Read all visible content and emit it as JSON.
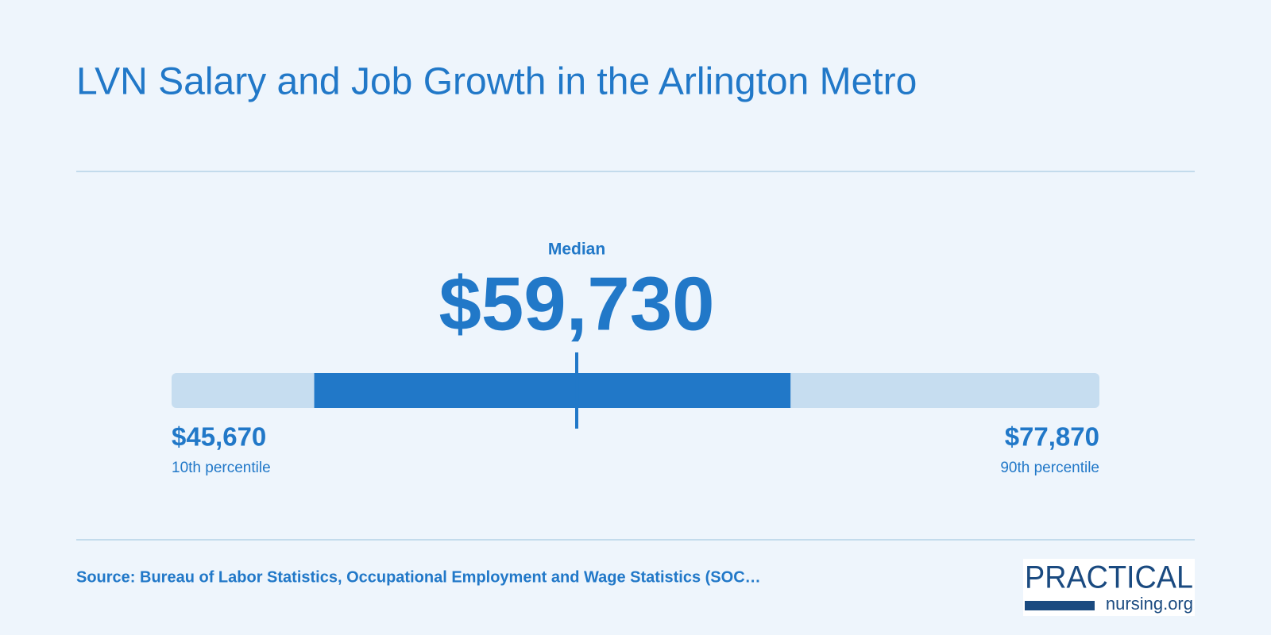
{
  "header": {
    "title": "LVN Salary and Job Growth in the Arlington Metro"
  },
  "range": {
    "median": {
      "label": "Median",
      "value": 59730,
      "value_label": "$59,730"
    },
    "low": {
      "value": 45670,
      "value_label": "$45,670",
      "caption": "10th percentile"
    },
    "high": {
      "value": 77870,
      "value_label": "$77,870",
      "caption": "90th percentile"
    },
    "band": [
      50620,
      67150
    ],
    "color": "#2178c8",
    "track_color": "#c6ddf0"
  },
  "footer": {
    "source": "Source: Bureau of Labor Statistics, Occupational Employment and Wage Statistics (SOC…",
    "logo": {
      "brand": "PRACTICAL",
      "domain": "nursing.org"
    }
  }
}
